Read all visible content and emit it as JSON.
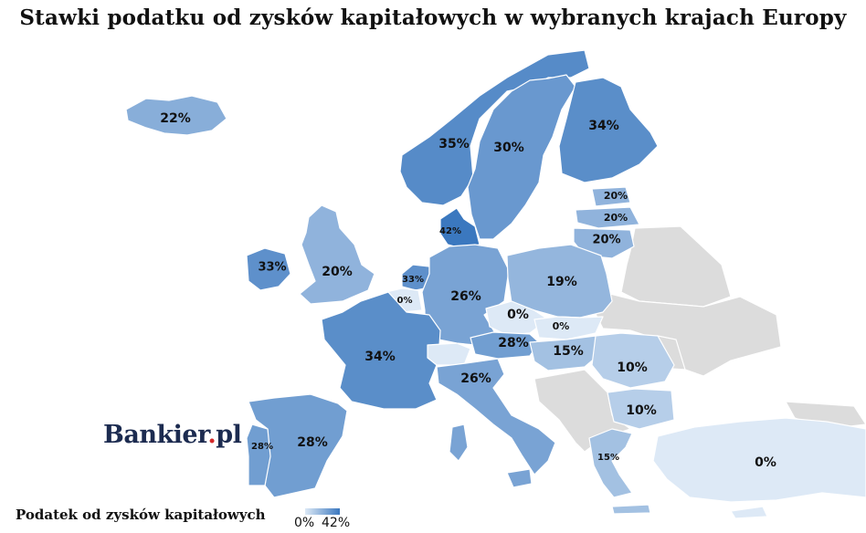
{
  "title": "Stawki podatku od zysków kapitałowych w wybranych krajach Europy",
  "logo": {
    "brand": "Bankier",
    "dot": ".",
    "tld": "pl"
  },
  "legend": {
    "title": "Podatek od zysków kapitałowych",
    "min_label": "0%",
    "max_label": "42%",
    "color_low": "#dde9f6",
    "color_high": "#3b78bf"
  },
  "colors": {
    "no_data": "#dcdcdc",
    "border": "#ffffff",
    "background": "#ffffff"
  },
  "countries": [
    {
      "key": "iceland",
      "value": 22,
      "label": "22%"
    },
    {
      "key": "norway",
      "value": 35,
      "label": "35%"
    },
    {
      "key": "sweden",
      "value": 30,
      "label": "30%"
    },
    {
      "key": "finland",
      "value": 34,
      "label": "34%"
    },
    {
      "key": "estonia",
      "value": 20,
      "label": "20%"
    },
    {
      "key": "latvia",
      "value": 20,
      "label": "20%"
    },
    {
      "key": "lithuania",
      "value": 20,
      "label": "20%"
    },
    {
      "key": "denmark",
      "value": 42,
      "label": "42%"
    },
    {
      "key": "ireland",
      "value": 33,
      "label": "33%"
    },
    {
      "key": "united-kingdom",
      "value": 20,
      "label": "20%"
    },
    {
      "key": "netherlands",
      "value": 33,
      "label": "33%"
    },
    {
      "key": "belgium",
      "value": 0,
      "label": "0%"
    },
    {
      "key": "germany",
      "value": 26,
      "label": "26%"
    },
    {
      "key": "poland",
      "value": 19,
      "label": "19%"
    },
    {
      "key": "czechia",
      "value": 0,
      "label": "0%"
    },
    {
      "key": "slovakia",
      "value": 0,
      "label": "0%"
    },
    {
      "key": "austria",
      "value": 28,
      "label": "28%"
    },
    {
      "key": "hungary",
      "value": 15,
      "label": "15%"
    },
    {
      "key": "romania",
      "value": 10,
      "label": "10%"
    },
    {
      "key": "bulgaria",
      "value": 10,
      "label": "10%"
    },
    {
      "key": "france",
      "value": 34,
      "label": "34%"
    },
    {
      "key": "switzerland",
      "value": 0,
      "label": ""
    },
    {
      "key": "italy",
      "value": 26,
      "label": "26%"
    },
    {
      "key": "spain",
      "value": 28,
      "label": "28%"
    },
    {
      "key": "portugal",
      "value": 28,
      "label": "28%"
    },
    {
      "key": "greece",
      "value": 15,
      "label": "15%"
    },
    {
      "key": "turkey",
      "value": 0,
      "label": "0%"
    },
    {
      "key": "slovenia",
      "value": 0,
      "label": ""
    },
    {
      "key": "croatia",
      "value": 0,
      "label": ""
    }
  ]
}
